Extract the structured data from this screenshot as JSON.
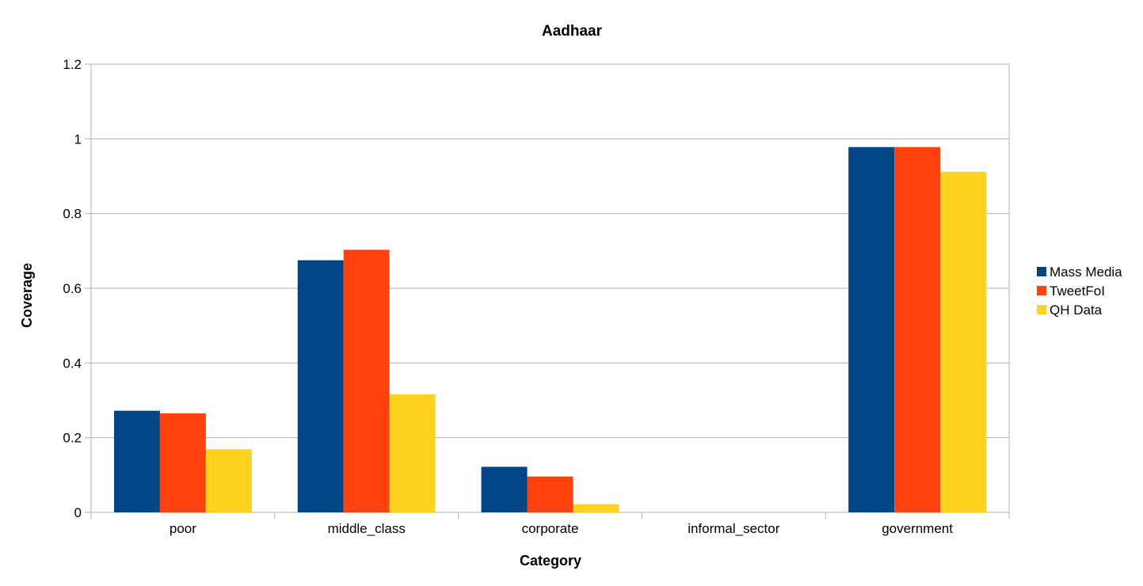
{
  "chart_data": {
    "type": "bar",
    "title": "Aadhaar",
    "xlabel": "Category",
    "ylabel": "Coverage",
    "categories": [
      "poor",
      "middle_class",
      "corporate",
      "informal_sector",
      "government"
    ],
    "series": [
      {
        "name": "Mass Media",
        "color": "#004586",
        "values": [
          0.272,
          0.675,
          0.122,
          0.0,
          0.978
        ]
      },
      {
        "name": "TweetFoI",
        "color": "#ff420e",
        "values": [
          0.265,
          0.703,
          0.096,
          0.0,
          0.978
        ]
      },
      {
        "name": "QH Data",
        "color": "#ffd320",
        "values": [
          0.169,
          0.316,
          0.022,
          0.0,
          0.912
        ]
      }
    ],
    "ylim": [
      0,
      1.2
    ],
    "yticks": [
      "0",
      "0.2",
      "0.4",
      "0.6",
      "0.8",
      "1",
      "1.2"
    ],
    "grid": true,
    "legend_position": "right"
  }
}
